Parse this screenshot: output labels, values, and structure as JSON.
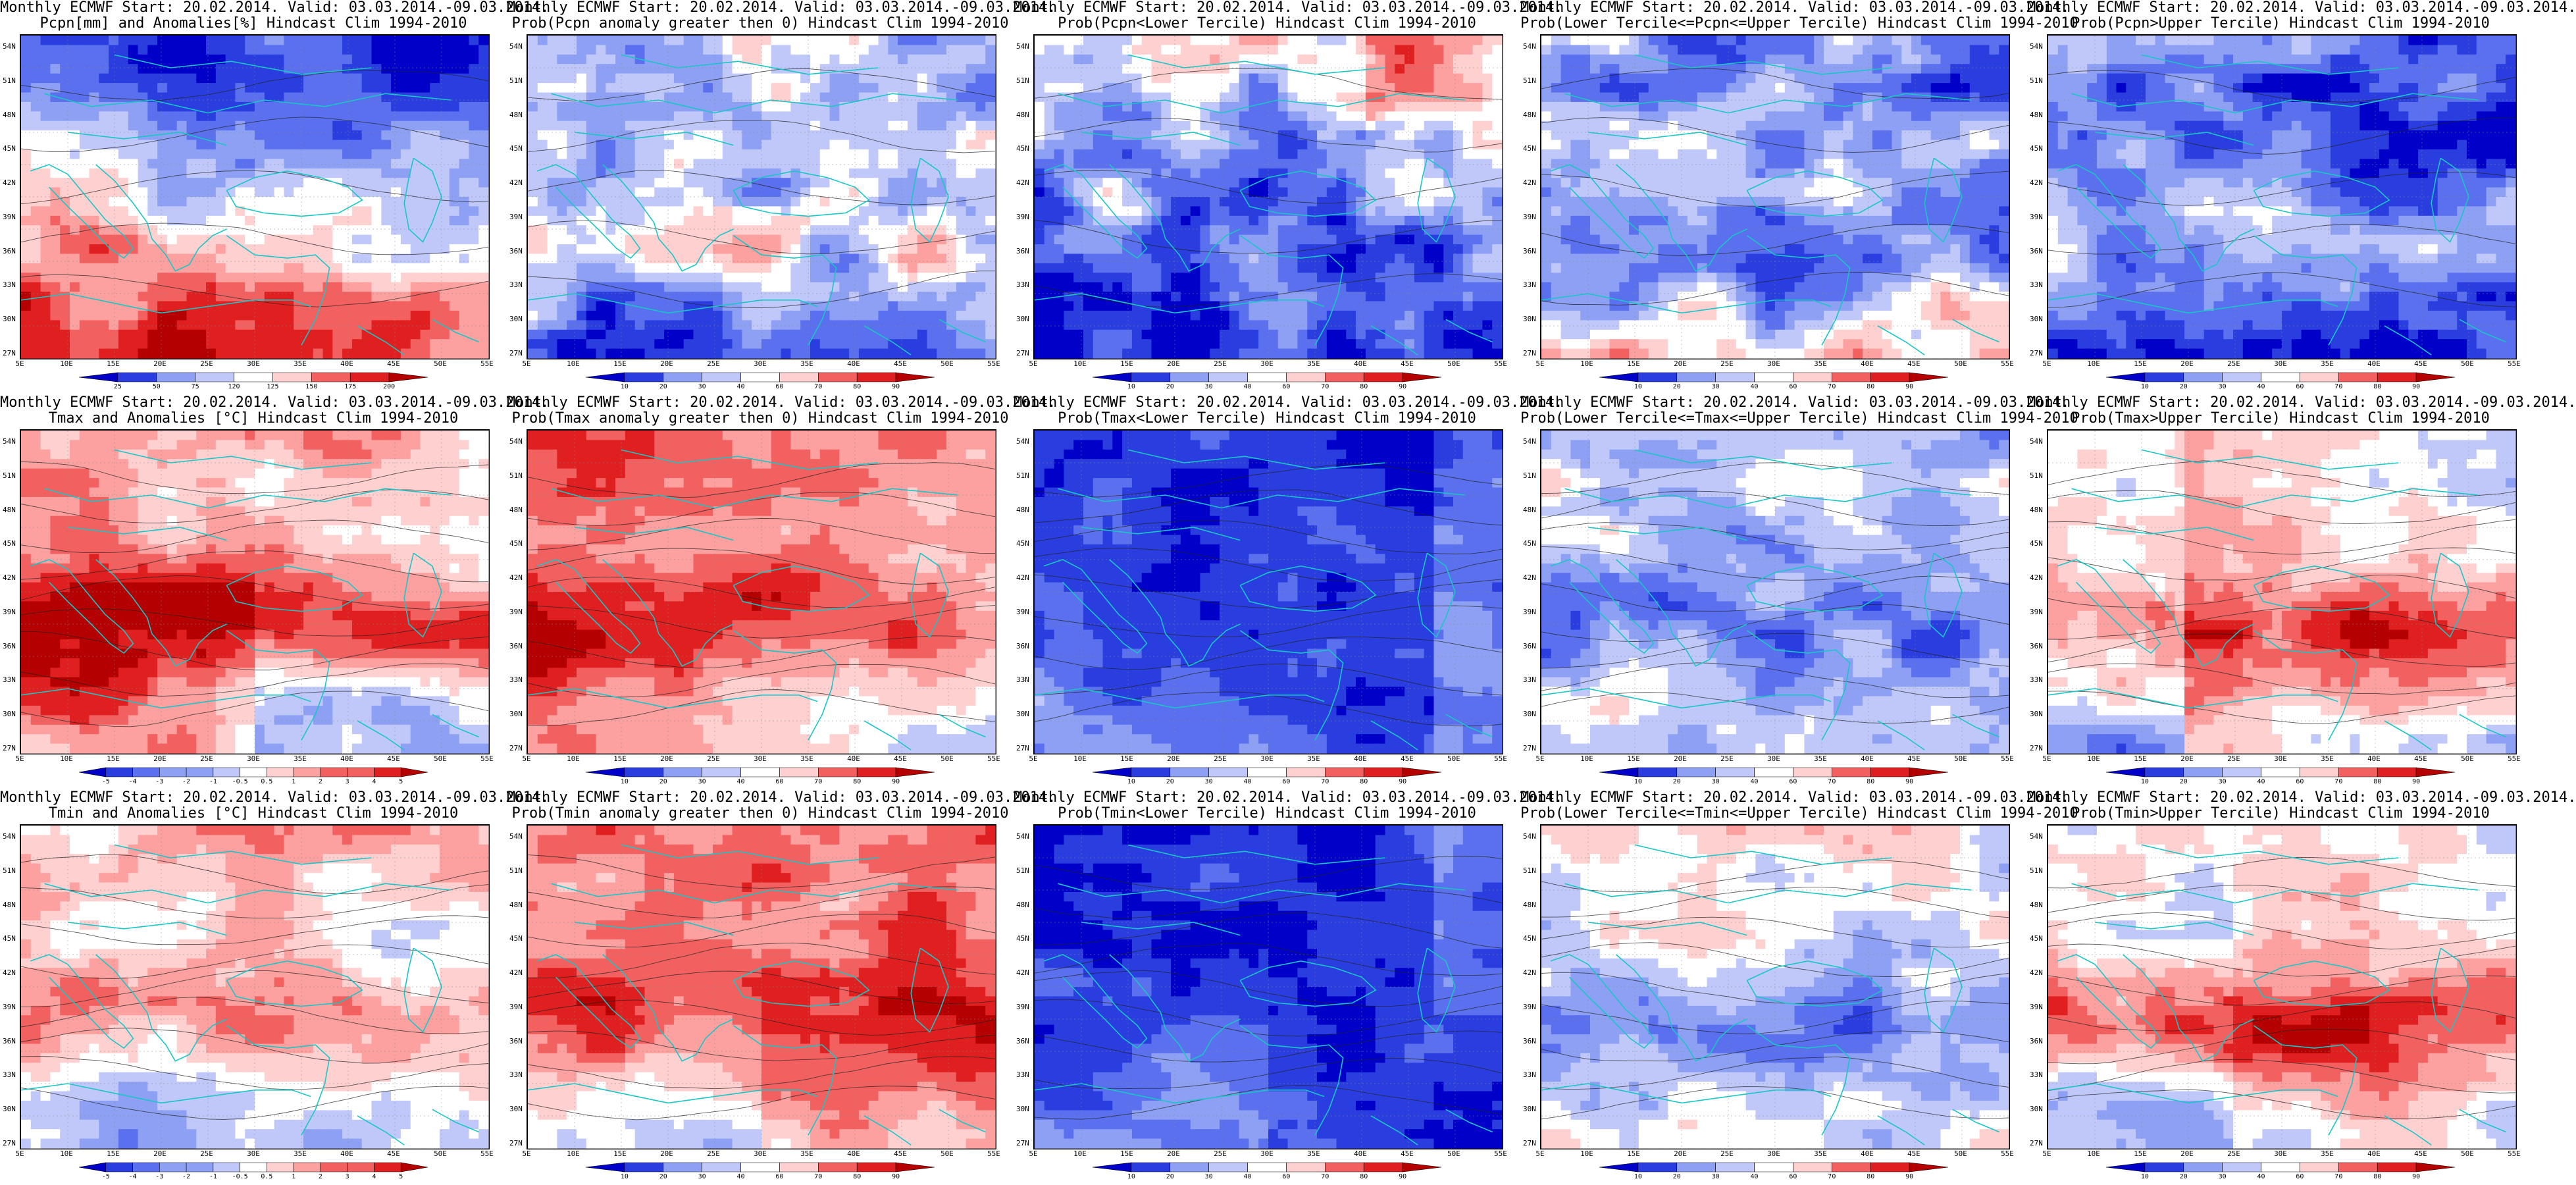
{
  "lat_labels": [
    "54N",
    "51N",
    "48N",
    "45N",
    "42N",
    "39N",
    "36N",
    "33N",
    "30N",
    "27N"
  ],
  "lon_labels": [
    "5E",
    "10E",
    "15E",
    "20E",
    "25E",
    "30E",
    "35E",
    "40E",
    "45E",
    "50E",
    "55E"
  ],
  "colors": {
    "ocean_grid": "#9fb8c8",
    "coast": "#19c6c6",
    "contour": "#222222",
    "scale": [
      "#0000c8",
      "#2a3ee0",
      "#5a70ee",
      "#8ea0f4",
      "#c0c8fa",
      "#ffffff",
      "#ffd0d0",
      "#fca0a0",
      "#f36060",
      "#e02020",
      "#b40000"
    ]
  },
  "panels": [
    {
      "title1": "Monthly ECMWF Start: 20.02.2014. Valid: 03.03.2014.-09.03.2014.",
      "title2": "Pcpn[mm] and Anomalies[%] Hindcast Clim 1994-2010",
      "ticks": [
        "25",
        "50",
        "75",
        "120",
        "125",
        "150",
        "175",
        "200"
      ],
      "pattern": "pcpn_anom"
    },
    {
      "title1": "Monthly ECMWF Start: 20.02.2014. Valid: 03.03.2014.-09.03.2014.",
      "title2": "Prob(Pcpn anomaly greater then 0) Hindcast Clim 1994-2010",
      "ticks": [
        "10",
        "20",
        "30",
        "40",
        "60",
        "70",
        "80",
        "90"
      ],
      "pattern": "pcpn_gt0"
    },
    {
      "title1": "Monthly ECMWF Start: 20.02.2014. Valid: 03.03.2014.-09.03.2014.",
      "title2": "Prob(Pcpn<Lower Tercile) Hindcast Clim 1994-2010",
      "ticks": [
        "10",
        "20",
        "30",
        "40",
        "60",
        "70",
        "80",
        "90"
      ],
      "pattern": "pcpn_lower"
    },
    {
      "title1": "Monthly ECMWF Start: 20.02.2014. Valid: 03.03.2014.-09.03.2014.",
      "title2": "Prob(Lower Tercile<=Pcpn<=Upper Tercile) Hindcast Clim 1994-2010",
      "ticks": [
        "10",
        "20",
        "30",
        "40",
        "60",
        "70",
        "80",
        "90"
      ],
      "pattern": "pcpn_mid"
    },
    {
      "title1": "Monthly ECMWF Start: 20.02.2014. Valid: 03.03.2014.-09.03.2014.",
      "title2": "Prob(Pcpn>Upper Tercile) Hindcast Clim 1994-2010",
      "ticks": [
        "10",
        "20",
        "30",
        "40",
        "60",
        "70",
        "80",
        "90"
      ],
      "pattern": "pcpn_upper"
    },
    {
      "title1": "Monthly ECMWF Start: 20.02.2014. Valid: 03.03.2014.-09.03.2014.",
      "title2": "Tmax and Anomalies [°C] Hindcast Clim 1994-2010",
      "ticks": [
        "-5",
        "-4",
        "-3",
        "-2",
        "-1",
        "-0.5",
        "0.5",
        "1",
        "2",
        "3",
        "4",
        "5"
      ],
      "pattern": "tmax_anom"
    },
    {
      "title1": "Monthly ECMWF Start: 20.02.2014. Valid: 03.03.2014.-09.03.2014.",
      "title2": "Prob(Tmax anomaly greater then 0) Hindcast Clim 1994-2010",
      "ticks": [
        "10",
        "20",
        "30",
        "40",
        "60",
        "70",
        "80",
        "90"
      ],
      "pattern": "tmax_gt0"
    },
    {
      "title1": "Monthly ECMWF Start: 20.02.2014. Valid: 03.03.2014.-09.03.2014.",
      "title2": "Prob(Tmax<Lower Tercile) Hindcast Clim 1994-2010",
      "ticks": [
        "10",
        "20",
        "30",
        "40",
        "60",
        "70",
        "80",
        "90"
      ],
      "pattern": "tmax_lower"
    },
    {
      "title1": "Monthly ECMWF Start: 20.02.2014. Valid: 03.03.2014.-09.03.2014.",
      "title2": "Prob(Lower Tercile<=Tmax<=Upper Tercile) Hindcast Clim 1994-2010",
      "ticks": [
        "10",
        "20",
        "30",
        "40",
        "60",
        "70",
        "80",
        "90"
      ],
      "pattern": "tmax_mid"
    },
    {
      "title1": "Monthly ECMWF Start: 20.02.2014. Valid: 03.03.2014.-09.03.2014.",
      "title2": "Prob(Tmax>Upper Tercile) Hindcast Clim 1994-2010",
      "ticks": [
        "10",
        "20",
        "30",
        "40",
        "60",
        "70",
        "80",
        "90"
      ],
      "pattern": "tmax_upper"
    },
    {
      "title1": "Monthly ECMWF Start: 20.02.2014. Valid: 03.03.2014.-09.03.2014.",
      "title2": "Tmin and Anomalies [°C] Hindcast Clim 1994-2010",
      "ticks": [
        "-5",
        "-4",
        "-3",
        "-2",
        "-1",
        "-0.5",
        "0.5",
        "1",
        "2",
        "3",
        "4",
        "5"
      ],
      "pattern": "tmin_anom"
    },
    {
      "title1": "Monthly ECMWF Start: 20.02.2014. Valid: 03.03.2014.-09.03.2014.",
      "title2": "Prob(Tmin anomaly greater then 0) Hindcast Clim 1994-2010",
      "ticks": [
        "10",
        "20",
        "30",
        "40",
        "60",
        "70",
        "80",
        "90"
      ],
      "pattern": "tmin_gt0"
    },
    {
      "title1": "Monthly ECMWF Start: 20.02.2014. Valid: 03.03.2014.-09.03.2014.",
      "title2": "Prob(Tmin<Lower Tercile) Hindcast Clim 1994-2010",
      "ticks": [
        "10",
        "20",
        "30",
        "40",
        "60",
        "70",
        "80",
        "90"
      ],
      "pattern": "tmin_lower"
    },
    {
      "title1": "Monthly ECMWF Start: 20.02.2014. Valid: 03.03.2014.-09.03.2014.",
      "title2": "Prob(Lower Tercile<=Tmin<=Upper Tercile) Hindcast Clim 1994-2010",
      "ticks": [
        "10",
        "20",
        "30",
        "40",
        "60",
        "70",
        "80",
        "90"
      ],
      "pattern": "tmin_mid"
    },
    {
      "title1": "Monthly ECMWF Start: 20.02.2014. Valid: 03.03.2014.-09.03.2014.",
      "title2": "Prob(Tmin>Upper Tercile) Hindcast Clim 1994-2010",
      "ticks": [
        "10",
        "20",
        "30",
        "40",
        "60",
        "70",
        "80",
        "90"
      ],
      "pattern": "tmin_upper"
    }
  ]
}
